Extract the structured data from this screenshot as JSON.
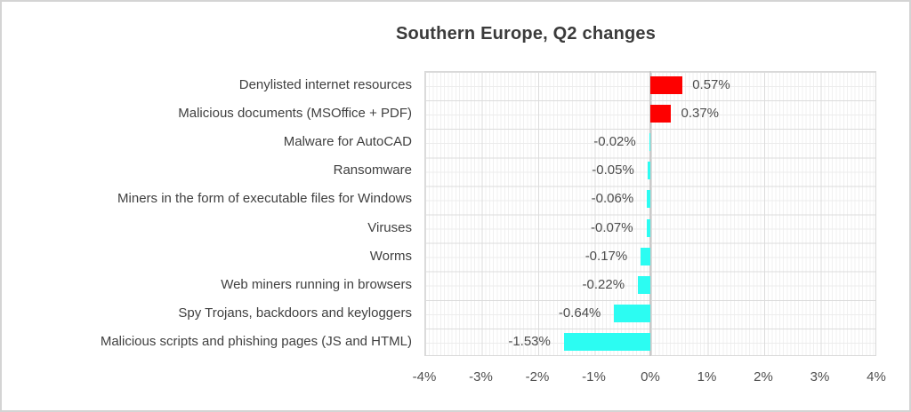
{
  "chart_data": {
    "type": "bar",
    "orientation": "horizontal",
    "title": "Southern Europe, Q2 changes",
    "categories": [
      "Denylisted internet resources",
      "Malicious documents (MSOffice + PDF)",
      "Malware for AutoCAD",
      "Ransomware",
      "Miners in the form of executable files for Windows",
      "Viruses",
      "Worms",
      "Web miners running in browsers",
      "Spy Trojans, backdoors and keyloggers",
      "Malicious scripts and phishing pages (JS and HTML)"
    ],
    "values": [
      0.57,
      0.37,
      -0.02,
      -0.05,
      -0.06,
      -0.07,
      -0.17,
      -0.22,
      -0.64,
      -1.53
    ],
    "value_labels": [
      "0.57%",
      "0.37%",
      "-0.02%",
      "-0.05%",
      "-0.06%",
      "-0.07%",
      "-0.17%",
      "-0.22%",
      "-0.64%",
      "-1.53%"
    ],
    "xlabel": "",
    "ylabel": "",
    "xlim": [
      -4,
      4
    ],
    "x_ticks": [
      "-4%",
      "-3%",
      "-2%",
      "-1%",
      "0%",
      "1%",
      "2%",
      "3%",
      "4%"
    ],
    "grid": "on",
    "legend": "none",
    "colors": {
      "positive_bar": "#fe0000",
      "negative_bar": "#2cfcf2"
    }
  }
}
